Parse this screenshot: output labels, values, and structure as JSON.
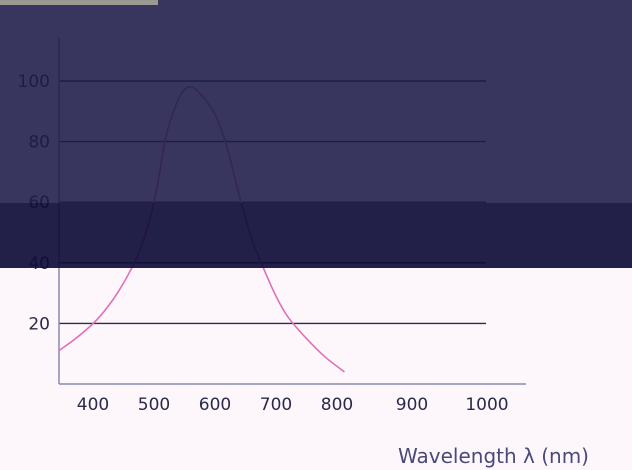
{
  "chart_data": {
    "type": "line",
    "title": "",
    "xlabel": "Wavelength λ (nm)",
    "ylabel": "",
    "xlim": [
      350,
      1000
    ],
    "ylim": [
      0,
      115
    ],
    "grid": true,
    "x_ticks": [
      400,
      500,
      600,
      700,
      800,
      900,
      1000
    ],
    "y_ticks": [
      20,
      40,
      60,
      80,
      100
    ],
    "series": [
      {
        "color": "#e070b8",
        "x": [
          350,
          380,
          410,
          440,
          470,
          490,
          505,
          520,
          540,
          557,
          575,
          600,
          620,
          640,
          660,
          680,
          700,
          720,
          750,
          780,
          810
        ],
        "y": [
          11,
          16,
          22,
          30,
          41,
          52,
          65,
          82,
          94,
          98,
          96,
          89,
          78,
          62,
          48,
          38,
          29,
          22,
          15,
          9,
          4
        ]
      }
    ],
    "colors": {
      "overlay_dark": "#1d1a48",
      "overlay_darker": "#0f0c38",
      "background": "#fdf7fc",
      "gridline": "#2a2a4a"
    }
  }
}
